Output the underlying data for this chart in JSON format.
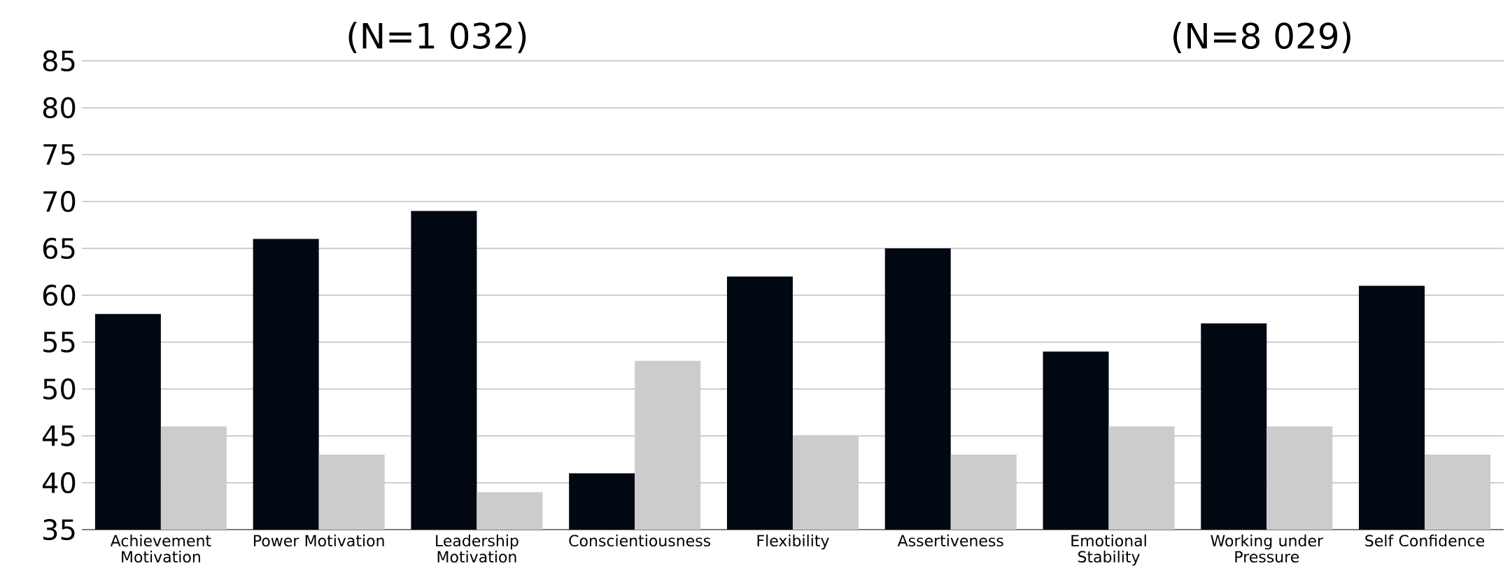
{
  "chart_data": {
    "type": "bar",
    "categories": [
      "Achievement Motivation",
      "Power Motivation",
      "Leadership Motivation",
      "Conscientiousness",
      "Flexibility",
      "Assertiveness",
      "Emotional Stability",
      "Working under Pressure",
      "Self Confidence"
    ],
    "series": [
      {
        "color": "#020812",
        "values": [
          58,
          66,
          69,
          41,
          62,
          65,
          54,
          57,
          61
        ]
      },
      {
        "color": "#cccccc",
        "values": [
          46,
          43,
          39,
          53,
          45,
          43,
          46,
          46,
          43
        ]
      }
    ],
    "ylim": [
      35,
      85
    ],
    "yticks": [
      35,
      40,
      45,
      50,
      55,
      60,
      65,
      70,
      75,
      80,
      85
    ],
    "grid": "y",
    "legend": false,
    "annotations": [
      "(N=1 032)",
      "(N=8 029)"
    ]
  }
}
